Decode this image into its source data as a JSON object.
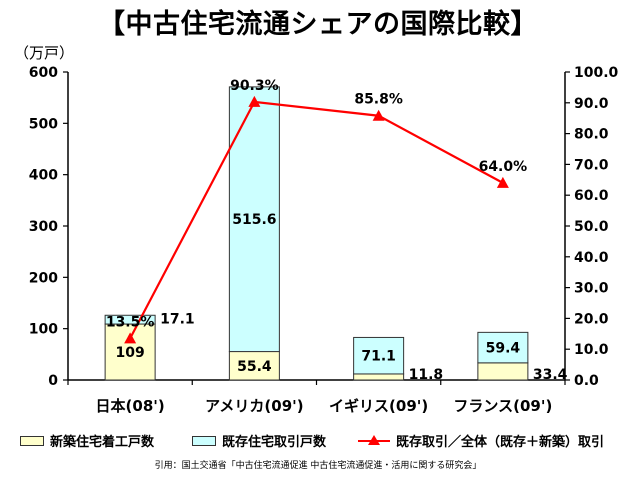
{
  "title": "【中古住宅流通シェアの国際比較】",
  "unit_label": "（万戸）",
  "source": "引用：国土交通省「中古住宅流通促進 中古住宅流通促進・活用に関する研究会」",
  "colors": {
    "new_housing": "#ffffcc",
    "existing_housing": "#ccffff",
    "share_line": "#ff0000",
    "bar_border": "#333333",
    "axis": "#000000",
    "grid": "#dddddd"
  },
  "chart_data": {
    "type": "bar",
    "stacked": true,
    "title": "【中古住宅流通シェアの国際比較】",
    "ylabel_left": "（万戸）",
    "categories": [
      "日本(08')",
      "アメリカ(09')",
      "イギリス(09')",
      "フランス(09')"
    ],
    "series": [
      {
        "name": "新築住宅着工戸数",
        "type": "bar",
        "values": [
          109,
          55.4,
          11.8,
          33.4
        ],
        "labels": [
          "109",
          "55.4",
          "11.8",
          "33.4"
        ]
      },
      {
        "name": "既存住宅取引戸数",
        "type": "bar",
        "values": [
          17.1,
          515.6,
          71.1,
          59.4
        ],
        "labels": [
          "17.1",
          "515.6",
          "71.1",
          "59.4"
        ]
      },
      {
        "name": "既存取引／全体（既存＋新築）取引",
        "type": "line",
        "axis": "right",
        "values": [
          13.5,
          90.3,
          85.8,
          64.0
        ],
        "labels": [
          "13.5%",
          "90.3%",
          "85.8%",
          "64.0%"
        ]
      }
    ],
    "ylim_left": [
      0,
      600
    ],
    "yticks_left": [
      "0",
      "100",
      "200",
      "300",
      "400",
      "500",
      "600"
    ],
    "ylim_right": [
      0,
      100
    ],
    "yticks_right": [
      "0.0",
      "10.0",
      "20.0",
      "30.0",
      "40.0",
      "50.0",
      "60.0",
      "70.0",
      "80.0",
      "90.0",
      "100.0"
    ],
    "grid": false,
    "legend_position": "bottom"
  }
}
